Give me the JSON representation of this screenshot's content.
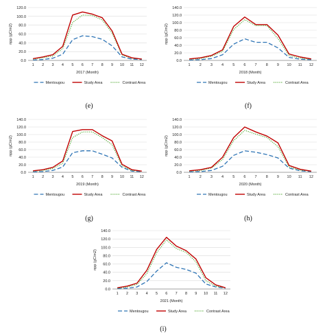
{
  "colors": {
    "mentougou": "#2e74b5",
    "study_area": "#c00000",
    "contrast_area": "#4ea72e",
    "grid": "#d9d9d9"
  },
  "chart_data": [
    {
      "type": "line",
      "panel": "(e)",
      "xlabel": "2017 (Month)",
      "ylabel": "npp (gC/m2)",
      "x": [
        1,
        2,
        3,
        4,
        5,
        6,
        7,
        8,
        9,
        10,
        11,
        12
      ],
      "ylim": [
        0,
        120
      ],
      "yticks": [
        "0.0",
        "20.0",
        "40.0",
        "60.0",
        "80.0",
        "100.0",
        "120.0"
      ],
      "series": [
        {
          "name": "Mentougou",
          "style": "dash",
          "values": [
            1,
            2,
            5,
            14,
            47,
            56,
            54,
            48,
            33,
            8,
            3,
            2
          ]
        },
        {
          "name": "Study Area",
          "style": "solid",
          "values": [
            4,
            8,
            13,
            32,
            103,
            110,
            105,
            97,
            67,
            14,
            6,
            3
          ]
        },
        {
          "name": "Contrast Area",
          "style": "dot",
          "values": [
            3,
            6,
            10,
            27,
            86,
            103,
            102,
            92,
            62,
            12,
            5,
            3
          ]
        }
      ]
    },
    {
      "type": "line",
      "panel": "(f)",
      "xlabel": "2018 (Month)",
      "ylabel": "npp (gC/m2)",
      "x": [
        1,
        2,
        3,
        4,
        5,
        6,
        7,
        8,
        9,
        10,
        11,
        12
      ],
      "ylim": [
        0,
        140
      ],
      "yticks": [
        "0.0",
        "20.0",
        "40.0",
        "60.0",
        "80.0",
        "100.0",
        "120.0",
        "140.0"
      ],
      "series": [
        {
          "name": "Mentougou",
          "style": "dash",
          "values": [
            1,
            2,
            5,
            15,
            43,
            57,
            48,
            48,
            33,
            8,
            3,
            2
          ]
        },
        {
          "name": "Study Area",
          "style": "solid",
          "values": [
            4,
            7,
            13,
            28,
            90,
            115,
            95,
            95,
            67,
            17,
            9,
            4
          ]
        },
        {
          "name": "Contrast Area",
          "style": "dot",
          "values": [
            3,
            5,
            11,
            24,
            82,
            108,
            92,
            92,
            58,
            13,
            6,
            3
          ]
        }
      ]
    },
    {
      "type": "line",
      "panel": "(g)",
      "xlabel": "2019 (Month)",
      "ylabel": "npp (gC/m2)",
      "x": [
        1,
        2,
        3,
        4,
        5,
        6,
        7,
        8,
        9,
        10,
        11,
        12
      ],
      "ylim": [
        0,
        140
      ],
      "yticks": [
        "0.0",
        "20.0",
        "40.0",
        "60.0",
        "80.0",
        "100.0",
        "120.0",
        "140.0"
      ],
      "series": [
        {
          "name": "Mentougou",
          "style": "dash",
          "values": [
            1,
            2,
            5,
            14,
            52,
            57,
            57,
            48,
            38,
            13,
            3,
            2
          ]
        },
        {
          "name": "Study Area",
          "style": "solid",
          "values": [
            4,
            7,
            13,
            30,
            108,
            113,
            113,
            97,
            83,
            21,
            7,
            3
          ]
        },
        {
          "name": "Contrast Area",
          "style": "dot",
          "values": [
            3,
            5,
            10,
            24,
            92,
            107,
            107,
            92,
            73,
            17,
            5,
            3
          ]
        }
      ]
    },
    {
      "type": "line",
      "panel": "(h)",
      "xlabel": "2020 (Month)",
      "ylabel": "npp (gC/m2)",
      "x": [
        1,
        2,
        3,
        4,
        5,
        6,
        7,
        8,
        9,
        10,
        11,
        12
      ],
      "ylim": [
        0,
        140
      ],
      "yticks": [
        "0.0",
        "20.0",
        "40.0",
        "60.0",
        "80.0",
        "100.0",
        "120.0",
        "140.0"
      ],
      "series": [
        {
          "name": "Mentougou",
          "style": "dash",
          "values": [
            1,
            2,
            5,
            16,
            45,
            57,
            53,
            47,
            38,
            11,
            4,
            2
          ]
        },
        {
          "name": "Study Area",
          "style": "solid",
          "values": [
            4,
            7,
            13,
            40,
            92,
            120,
            107,
            96,
            78,
            18,
            8,
            3
          ]
        },
        {
          "name": "Contrast Area",
          "style": "dot",
          "values": [
            3,
            5,
            11,
            34,
            84,
            111,
            101,
            92,
            68,
            14,
            6,
            3
          ]
        }
      ]
    },
    {
      "type": "line",
      "panel": "(i)",
      "xlabel": "2021 (Month)",
      "ylabel": "npp (gC/m2)",
      "x": [
        1,
        2,
        3,
        4,
        5,
        6,
        7,
        8,
        9,
        10,
        11,
        12
      ],
      "ylim": [
        0,
        140
      ],
      "yticks": [
        "0.0",
        "20.0",
        "40.0",
        "60.0",
        "80.0",
        "100.0",
        "120.0",
        "140.0"
      ],
      "series": [
        {
          "name": "Mentougou",
          "style": "dash",
          "values": [
            1,
            2,
            5,
            18,
            43,
            63,
            52,
            47,
            38,
            12,
            5,
            2
          ]
        },
        {
          "name": "Study Area",
          "style": "solid",
          "values": [
            3,
            7,
            14,
            45,
            95,
            124,
            103,
            92,
            72,
            27,
            10,
            3
          ]
        },
        {
          "name": "Contrast Area",
          "style": "dot",
          "values": [
            2,
            5,
            11,
            37,
            87,
            118,
            97,
            88,
            65,
            20,
            7,
            3
          ]
        }
      ]
    }
  ]
}
